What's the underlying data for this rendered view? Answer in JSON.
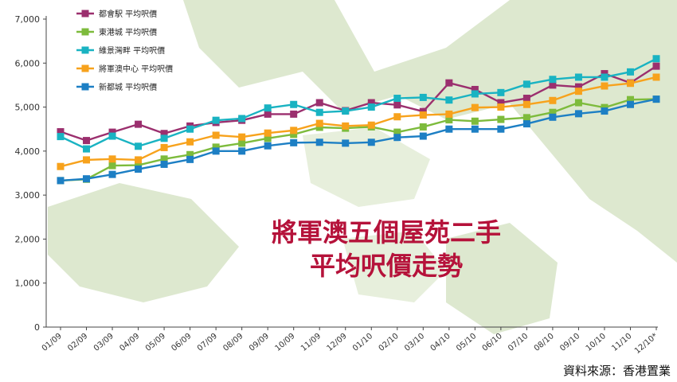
{
  "chart_data": {
    "type": "line",
    "title": "將軍澳五個屋苑二手 平均呎價走勢",
    "title_lines": [
      "將軍澳五個屋苑二手",
      "平均呎價走勢"
    ],
    "source": "資料來源：香港置業",
    "ylim": [
      0,
      7000
    ],
    "yticks": [
      "0",
      "1,000",
      "2,000",
      "3,000",
      "4,000",
      "5,000",
      "6,000",
      "7,000"
    ],
    "ytick_values": [
      0,
      1000,
      2000,
      3000,
      4000,
      5000,
      6000,
      7000
    ],
    "grid": false,
    "legend_position": "top-left",
    "categories": [
      "01/09",
      "02/09",
      "03/09",
      "04/09",
      "05/09",
      "06/09",
      "07/09",
      "08/09",
      "09/09",
      "10/09",
      "11/09",
      "12/09",
      "01/10",
      "02/10",
      "03/10",
      "04/10",
      "05/10",
      "06/10",
      "07/10",
      "08/10",
      "09/10",
      "10/10",
      "11/10",
      "12/10*"
    ],
    "series": [
      {
        "name": "都會駅 平均呎價",
        "color": "#9b2f6e",
        "values": [
          4440,
          4240,
          4430,
          4610,
          4400,
          4570,
          4650,
          4700,
          4840,
          4840,
          5100,
          4920,
          5100,
          5050,
          4900,
          5550,
          5400,
          5100,
          5200,
          5500,
          5460,
          5760,
          5550,
          5930
        ]
      },
      {
        "name": "東港城 平均呎價",
        "color": "#7dbb3c",
        "values": [
          3330,
          3360,
          3670,
          3680,
          3820,
          3920,
          4090,
          4180,
          4290,
          4380,
          4540,
          4520,
          4550,
          4430,
          4550,
          4710,
          4680,
          4720,
          4760,
          4880,
          5100,
          4990,
          5170,
          5180
        ]
      },
      {
        "name": "維景灣畔 平均呎價",
        "color": "#19b3c2",
        "values": [
          4330,
          4050,
          4340,
          4110,
          4290,
          4500,
          4700,
          4740,
          4980,
          5060,
          4880,
          4910,
          5000,
          5200,
          5220,
          5160,
          5300,
          5330,
          5520,
          5630,
          5680,
          5680,
          5800,
          6100
        ]
      },
      {
        "name": "將軍澳中心 平均呎價",
        "color": "#f7a21c",
        "values": [
          3650,
          3800,
          3820,
          3800,
          4080,
          4210,
          4360,
          4320,
          4410,
          4470,
          4630,
          4570,
          4590,
          4780,
          4820,
          4840,
          4990,
          5000,
          5060,
          5150,
          5360,
          5480,
          5540,
          5680
        ]
      },
      {
        "name": "新都城 平均呎價",
        "color": "#1d7fc4",
        "values": [
          3330,
          3370,
          3470,
          3590,
          3700,
          3810,
          4000,
          4000,
          4120,
          4190,
          4200,
          4180,
          4200,
          4310,
          4340,
          4500,
          4500,
          4500,
          4620,
          4770,
          4850,
          4910,
          5060,
          5180
        ]
      }
    ]
  }
}
